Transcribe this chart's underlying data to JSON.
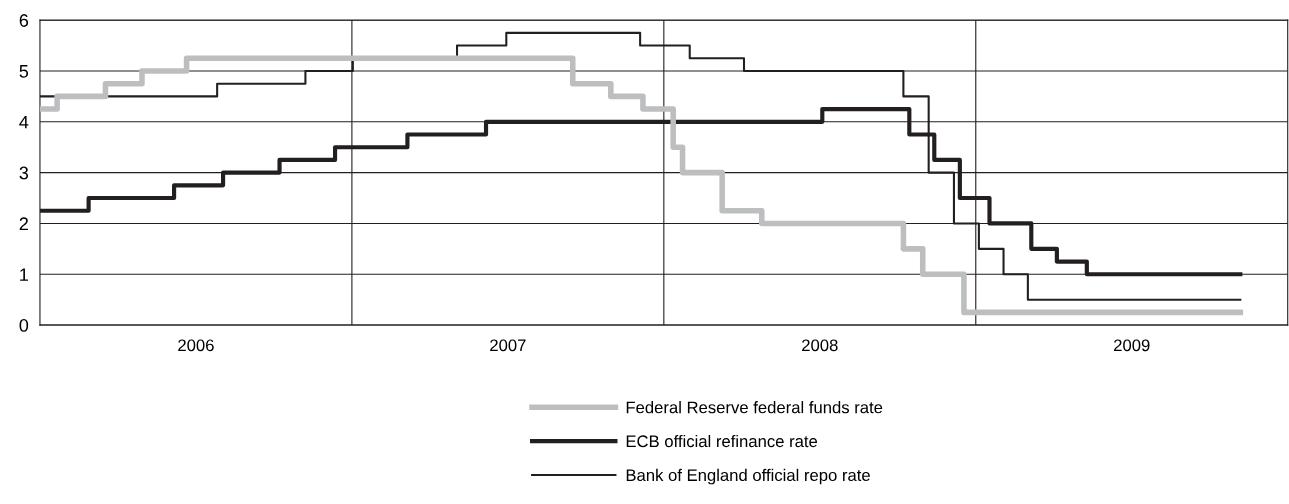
{
  "chart_data": {
    "type": "step",
    "series": [
      {
        "name": "Federal Reserve federal funds rate",
        "color": "#bcbec0",
        "x": [
          2006.0,
          2006.055,
          2006.21,
          2006.327,
          2006.47,
          2007.708,
          2007.83,
          2007.933,
          2008.03,
          2008.06,
          2008.187,
          2008.314,
          2008.768,
          2008.83,
          2008.962,
          2009.848
        ],
        "values": [
          4.25,
          4.5,
          4.75,
          5.0,
          5.25,
          4.75,
          4.5,
          4.25,
          3.5,
          3.0,
          2.25,
          2.0,
          1.5,
          1.0,
          0.25,
          0.25
        ]
      },
      {
        "name": "ECB official refinance rate",
        "color": "#231f20",
        "x": [
          2006.0,
          2006.156,
          2006.43,
          2006.587,
          2006.768,
          2006.946,
          2007.178,
          2007.43,
          2008.508,
          2008.787,
          2008.867,
          2008.949,
          2009.044,
          2009.178,
          2009.26,
          2009.356,
          2009.848
        ],
        "values": [
          2.25,
          2.5,
          2.75,
          3.0,
          3.25,
          3.5,
          3.75,
          4.0,
          4.25,
          3.75,
          3.25,
          2.5,
          2.0,
          1.5,
          1.25,
          1.0,
          1.0
        ]
      },
      {
        "name": "Bank of England official repo rate",
        "color": "#231f20",
        "x": [
          2006.0,
          2006.568,
          2006.851,
          2007.003,
          2007.337,
          2007.495,
          2007.924,
          2008.083,
          2008.257,
          2008.768,
          2008.849,
          2008.93,
          2009.01,
          2009.089,
          2009.167,
          2009.848
        ],
        "values": [
          4.5,
          4.75,
          5.0,
          5.25,
          5.5,
          5.75,
          5.5,
          5.25,
          5.0,
          4.5,
          3.0,
          2.0,
          1.5,
          1.0,
          0.5,
          0.5
        ]
      }
    ],
    "xlim": [
      2006,
      2010
    ],
    "xticks": [
      {
        "value": 2006.5,
        "label": "2006"
      },
      {
        "value": 2007.5,
        "label": "2007"
      },
      {
        "value": 2008.5,
        "label": "2008"
      },
      {
        "value": 2009.5,
        "label": "2009"
      }
    ],
    "ylim": [
      0,
      6
    ],
    "yticks": [
      0,
      1,
      2,
      3,
      4,
      5,
      6
    ],
    "ref_lines": [
      {
        "axis": "x",
        "value": 2007,
        "color": "#231f20"
      },
      {
        "axis": "x",
        "value": 2008,
        "color": "#231f20"
      },
      {
        "axis": "x",
        "value": 2009,
        "color": "#231f20"
      }
    ],
    "grid": "y",
    "legend": "bottom",
    "line_style": "solid",
    "marker": "none"
  }
}
